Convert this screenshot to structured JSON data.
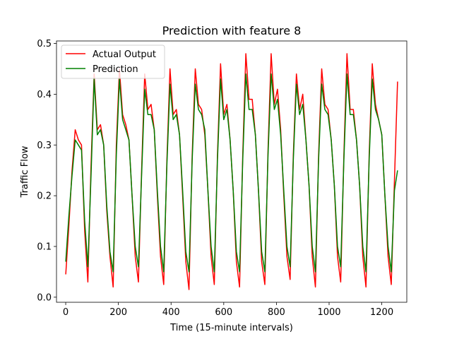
{
  "chart_data": {
    "type": "line",
    "title": "Prediction with feature 8",
    "xlabel": "Time (15-minute intervals)",
    "ylabel": "Traffic Flow",
    "xlim": [
      -35,
      1295
    ],
    "ylim": [
      -0.01,
      0.505
    ],
    "x_ticks": [
      0,
      200,
      400,
      600,
      800,
      1000,
      1200
    ],
    "x_tick_labels": [
      "0",
      "200",
      "400",
      "600",
      "800",
      "1000",
      "1200"
    ],
    "y_ticks": [
      0.0,
      0.1,
      0.2,
      0.3,
      0.4,
      0.5
    ],
    "y_tick_labels": [
      "0.0",
      "0.1",
      "0.2",
      "0.3",
      "0.4",
      "0.5"
    ],
    "grid": false,
    "legend_position": "top-left",
    "series": [
      {
        "name": "Actual Output",
        "color": "#ff0000",
        "x": [
          0,
          12,
          24,
          36,
          48,
          60,
          72,
          84,
          96,
          108,
          120,
          132,
          144,
          156,
          168,
          180,
          192,
          204,
          216,
          228,
          240,
          252,
          264,
          276,
          288,
          300,
          312,
          324,
          336,
          348,
          360,
          372,
          384,
          396,
          408,
          420,
          432,
          444,
          456,
          468,
          480,
          492,
          504,
          516,
          528,
          540,
          552,
          564,
          576,
          588,
          600,
          612,
          624,
          636,
          648,
          660,
          672,
          684,
          696,
          708,
          720,
          732,
          744,
          756,
          768,
          780,
          792,
          804,
          816,
          828,
          840,
          852,
          864,
          876,
          888,
          900,
          912,
          924,
          936,
          948,
          960,
          972,
          984,
          996,
          1008,
          1020,
          1032,
          1044,
          1056,
          1068,
          1080,
          1092,
          1104,
          1116,
          1128,
          1140,
          1152,
          1164,
          1176,
          1188,
          1200,
          1212,
          1224,
          1236,
          1248,
          1260
        ],
        "y": [
          0.045,
          0.14,
          0.25,
          0.33,
          0.31,
          0.3,
          0.13,
          0.03,
          0.26,
          0.44,
          0.33,
          0.34,
          0.3,
          0.17,
          0.08,
          0.02,
          0.3,
          0.45,
          0.36,
          0.34,
          0.31,
          0.2,
          0.08,
          0.03,
          0.25,
          0.44,
          0.37,
          0.38,
          0.33,
          0.2,
          0.08,
          0.025,
          0.27,
          0.45,
          0.36,
          0.37,
          0.32,
          0.2,
          0.07,
          0.015,
          0.28,
          0.45,
          0.38,
          0.37,
          0.32,
          0.21,
          0.08,
          0.025,
          0.28,
          0.46,
          0.36,
          0.38,
          0.31,
          0.21,
          0.07,
          0.02,
          0.28,
          0.48,
          0.39,
          0.39,
          0.32,
          0.21,
          0.07,
          0.025,
          0.29,
          0.48,
          0.38,
          0.41,
          0.33,
          0.2,
          0.08,
          0.035,
          0.28,
          0.44,
          0.37,
          0.4,
          0.31,
          0.22,
          0.08,
          0.02,
          0.28,
          0.45,
          0.38,
          0.37,
          0.31,
          0.22,
          0.08,
          0.03,
          0.28,
          0.48,
          0.37,
          0.37,
          0.31,
          0.22,
          0.08,
          0.02,
          0.28,
          0.46,
          0.38,
          0.35,
          0.32,
          0.2,
          0.08,
          0.025,
          0.23,
          0.425
        ]
      },
      {
        "name": "Prediction",
        "color": "#008000",
        "x": [
          0,
          12,
          24,
          36,
          48,
          60,
          72,
          84,
          96,
          108,
          120,
          132,
          144,
          156,
          168,
          180,
          192,
          204,
          216,
          228,
          240,
          252,
          264,
          276,
          288,
          300,
          312,
          324,
          336,
          348,
          360,
          372,
          384,
          396,
          408,
          420,
          432,
          444,
          456,
          468,
          480,
          492,
          504,
          516,
          528,
          540,
          552,
          564,
          576,
          588,
          600,
          612,
          624,
          636,
          648,
          660,
          672,
          684,
          696,
          708,
          720,
          732,
          744,
          756,
          768,
          780,
          792,
          804,
          816,
          828,
          840,
          852,
          864,
          876,
          888,
          900,
          912,
          924,
          936,
          948,
          960,
          972,
          984,
          996,
          1008,
          1020,
          1032,
          1044,
          1056,
          1068,
          1080,
          1092,
          1104,
          1116,
          1128,
          1140,
          1152,
          1164,
          1176,
          1188,
          1200,
          1212,
          1224,
          1236,
          1248,
          1260
        ],
        "y": [
          0.07,
          0.16,
          0.24,
          0.31,
          0.3,
          0.29,
          0.15,
          0.06,
          0.24,
          0.43,
          0.32,
          0.33,
          0.3,
          0.18,
          0.09,
          0.05,
          0.28,
          0.43,
          0.35,
          0.33,
          0.31,
          0.2,
          0.1,
          0.06,
          0.24,
          0.41,
          0.36,
          0.36,
          0.33,
          0.21,
          0.1,
          0.05,
          0.26,
          0.42,
          0.35,
          0.36,
          0.32,
          0.21,
          0.09,
          0.05,
          0.27,
          0.42,
          0.37,
          0.36,
          0.33,
          0.21,
          0.1,
          0.05,
          0.27,
          0.43,
          0.35,
          0.37,
          0.31,
          0.21,
          0.09,
          0.05,
          0.27,
          0.44,
          0.37,
          0.37,
          0.32,
          0.21,
          0.09,
          0.05,
          0.28,
          0.44,
          0.37,
          0.39,
          0.32,
          0.21,
          0.1,
          0.06,
          0.27,
          0.42,
          0.36,
          0.38,
          0.31,
          0.22,
          0.1,
          0.05,
          0.27,
          0.42,
          0.37,
          0.36,
          0.31,
          0.22,
          0.1,
          0.06,
          0.27,
          0.44,
          0.36,
          0.36,
          0.31,
          0.22,
          0.1,
          0.05,
          0.27,
          0.43,
          0.37,
          0.35,
          0.32,
          0.2,
          0.1,
          0.05,
          0.21,
          0.25
        ]
      }
    ]
  }
}
